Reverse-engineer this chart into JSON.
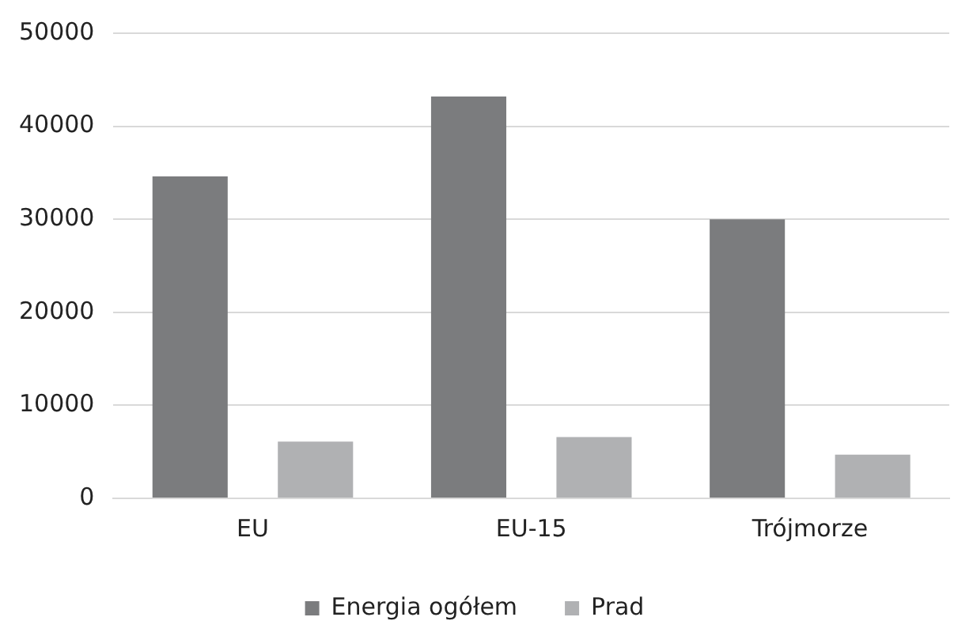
{
  "chart_data": {
    "type": "bar",
    "categories": [
      "EU",
      "EU-15",
      "Trójmorze"
    ],
    "series": [
      {
        "name": "Energia ogółem",
        "color": "#7b7c7e",
        "values": [
          34600,
          43200,
          30000
        ]
      },
      {
        "name": "Prad",
        "color": "#b0b1b3",
        "values": [
          6100,
          6600,
          4700
        ]
      }
    ],
    "ylim": [
      0,
      50000
    ],
    "yticks": [
      0,
      10000,
      20000,
      30000,
      40000,
      50000
    ],
    "grid": "y",
    "legend": "bottom"
  }
}
